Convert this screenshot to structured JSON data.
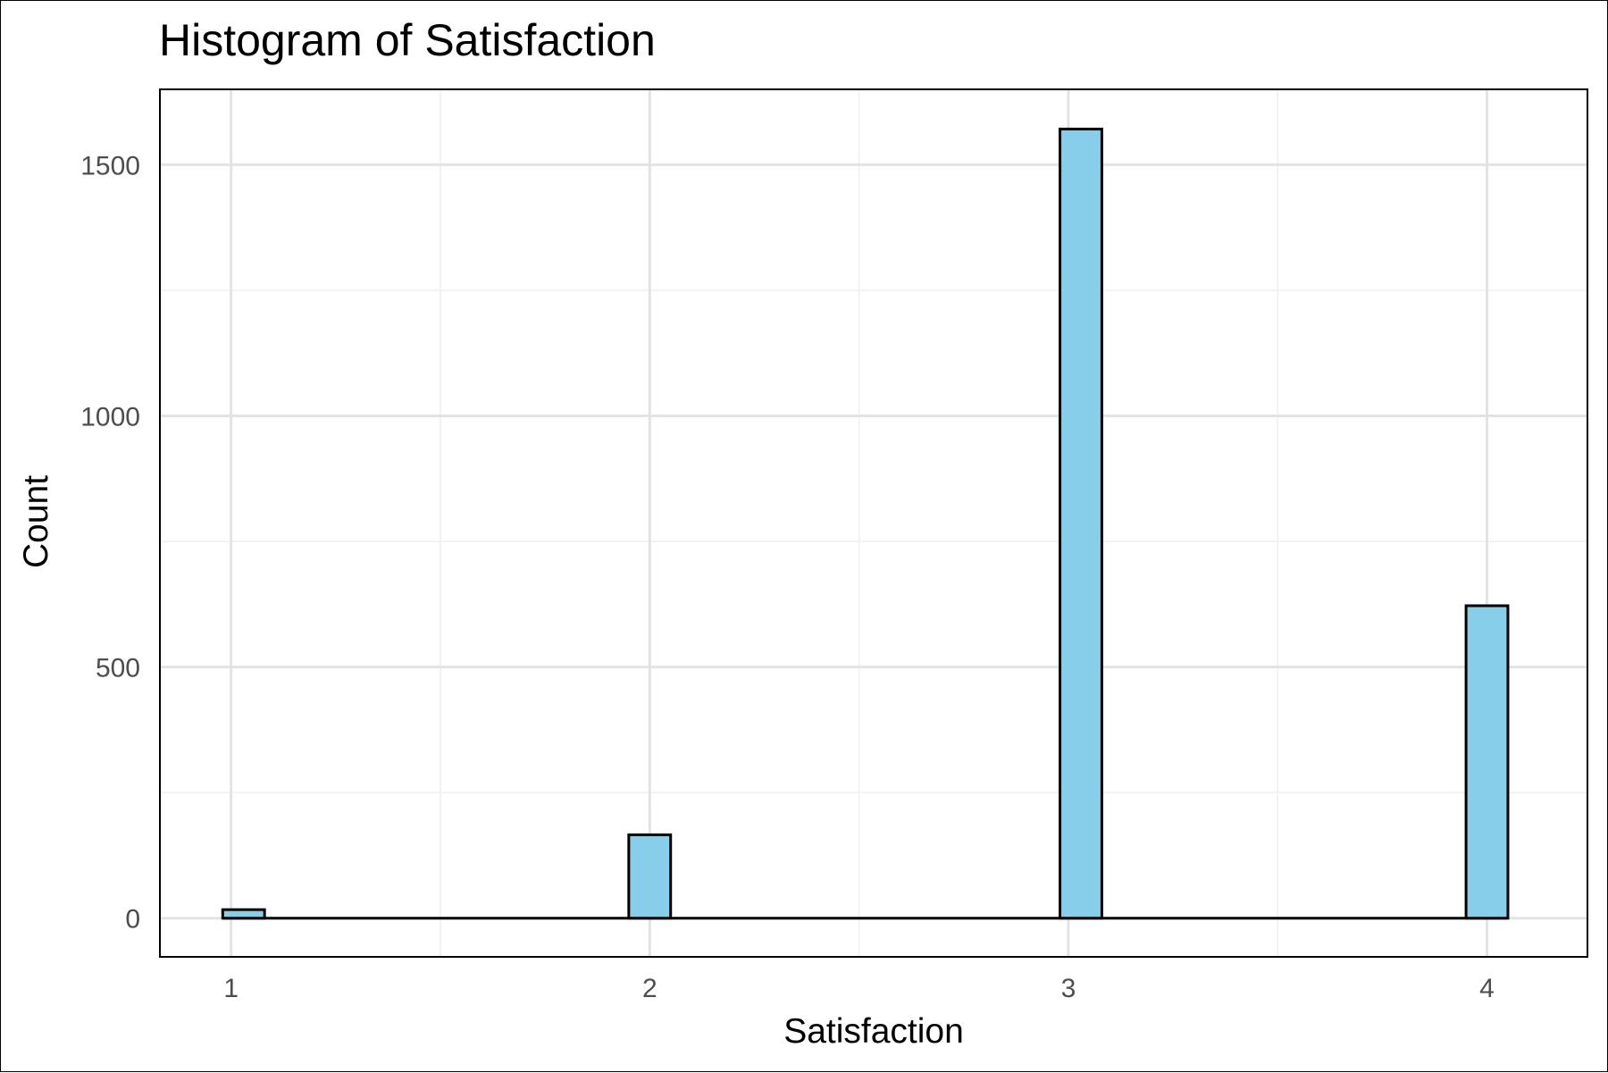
{
  "chart_data": {
    "type": "bar",
    "title": "Histogram of Satisfaction",
    "xlabel": "Satisfaction",
    "ylabel": "Count",
    "x_ticks": [
      1,
      2,
      3,
      4
    ],
    "y_ticks": [
      0,
      500,
      1000,
      1500
    ],
    "xlim": [
      0.83,
      4.24
    ],
    "ylim": [
      -77,
      1650
    ],
    "grid": true,
    "legend": "none",
    "bar_width": 0.1,
    "bins": [
      {
        "x": 1.03,
        "count": 17
      },
      {
        "x": 2.0,
        "count": 166
      },
      {
        "x": 3.03,
        "count": 1571
      },
      {
        "x": 4.0,
        "count": 622
      }
    ],
    "colors": {
      "bar_fill": "#87CEEB",
      "bar_stroke": "#000000",
      "grid_major": "#e3e3e3",
      "grid_minor": "#f2f2f2",
      "panel_border": "#000000"
    }
  }
}
